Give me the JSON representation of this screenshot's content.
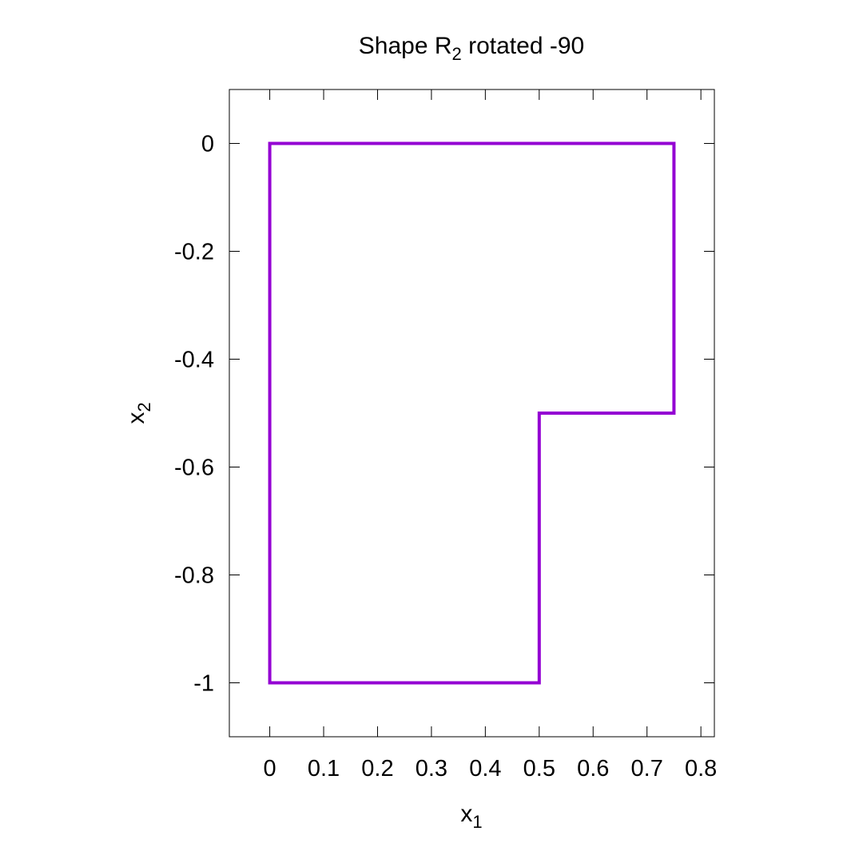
{
  "chart_data": {
    "type": "line",
    "title": {
      "main": "Shape R",
      "subscript": "2",
      "rest": " rotated -90"
    },
    "xlabel": {
      "main": "x",
      "subscript": "1"
    },
    "ylabel": {
      "main": "x",
      "subscript": "2"
    },
    "xlim": [
      -0.075,
      0.825
    ],
    "ylim": [
      -1.1,
      0.1
    ],
    "x_ticks": [
      0,
      0.1,
      0.2,
      0.3,
      0.4,
      0.5,
      0.6,
      0.7,
      0.8
    ],
    "x_tick_labels": [
      "0",
      "0.1",
      "0.2",
      "0.3",
      "0.4",
      "0.5",
      "0.6",
      "0.7",
      "0.8"
    ],
    "y_ticks": [
      0,
      -0.2,
      -0.4,
      -0.6,
      -0.8,
      -1
    ],
    "y_tick_labels": [
      "0",
      "-0.2",
      "-0.4",
      "-0.6",
      "-0.8",
      "-1"
    ],
    "grid": false,
    "series": [
      {
        "color": "#9400d3",
        "x": [
          0,
          0.75,
          0.75,
          0.5,
          0.5,
          0,
          0
        ],
        "y": [
          0,
          0,
          -0.5,
          -0.5,
          -1,
          -1,
          0
        ]
      }
    ]
  }
}
